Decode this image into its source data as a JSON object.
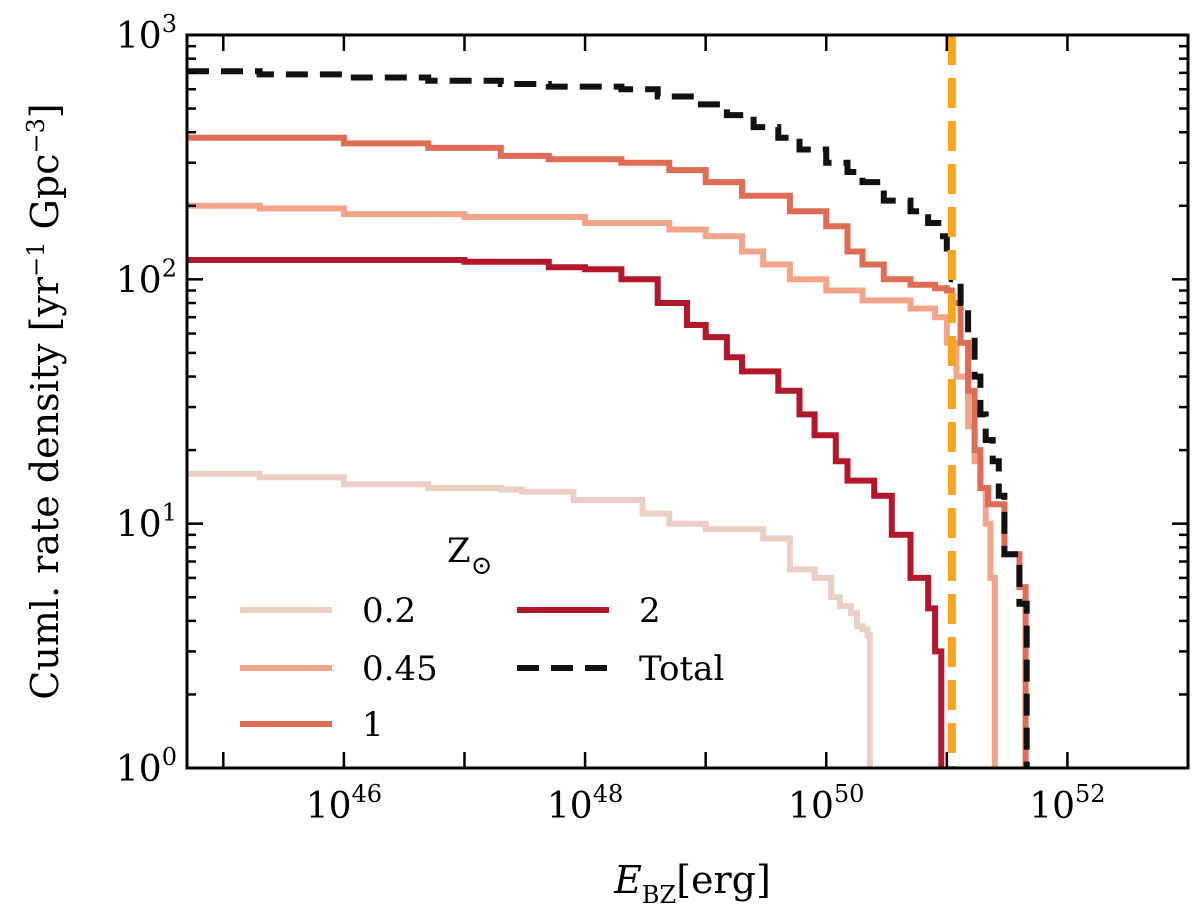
{
  "chart_data": {
    "type": "line",
    "xlabel": {
      "main": "E",
      "sub": "BZ",
      "unit": "[erg]"
    },
    "ylabel": {
      "prefix": "Cuml. rate density [yr",
      "exp1": "−1",
      "mid": " Gpc",
      "exp2": "−3",
      "suffix": "]"
    },
    "xscale": "log",
    "yscale": "log",
    "xlim": [
      5e+44,
      1e+53
    ],
    "ylim": [
      1,
      1000
    ],
    "x_ticks": [
      {
        "value": 1e+46,
        "base": "10",
        "exp": "46"
      },
      {
        "value": 1e+48,
        "base": "10",
        "exp": "48"
      },
      {
        "value": 1e+50,
        "base": "10",
        "exp": "50"
      },
      {
        "value": 1e+52,
        "base": "10",
        "exp": "52"
      }
    ],
    "y_ticks": [
      {
        "value": 1,
        "base": "10",
        "exp": "0"
      },
      {
        "value": 10,
        "base": "10",
        "exp": "1"
      },
      {
        "value": 100,
        "base": "10",
        "exp": "2"
      },
      {
        "value": 1000,
        "base": "10",
        "exp": "3"
      }
    ],
    "legend": {
      "title": "Z",
      "title_symbol": "⊙",
      "placement": "lower-left",
      "columns": 2
    },
    "vertical_line": {
      "x": 1.1e+51,
      "color": "#f5a51e",
      "style": "dashed"
    },
    "series": [
      {
        "name": "0.2",
        "color": "#eacfc2",
        "dash": false,
        "points": [
          [
            5e+44,
            16
          ],
          [
            2e+45,
            15.5
          ],
          [
            1e+46,
            14.5
          ],
          [
            5e+46,
            14
          ],
          [
            2e+47,
            13.8
          ],
          [
            3e+47,
            13.5
          ],
          [
            8e+47,
            12.5
          ],
          [
            3e+48,
            11
          ],
          [
            5e+48,
            10
          ],
          [
            1e+49,
            9.5
          ],
          [
            3e+49,
            8.7
          ],
          [
            5e+49,
            6.5
          ],
          [
            8e+49,
            6
          ],
          [
            1.1e+50,
            5
          ],
          [
            1.3e+50,
            4.6
          ],
          [
            1.6e+50,
            4.3
          ],
          [
            1.8e+50,
            3.8
          ],
          [
            2e+50,
            3.7
          ],
          [
            2.2e+50,
            3.5
          ],
          [
            2.3e+50,
            2.5
          ],
          [
            2.3e+50,
            1
          ]
        ]
      },
      {
        "name": "0.45",
        "color": "#f2a588",
        "dash": false,
        "points": [
          [
            5e+44,
            200
          ],
          [
            2e+45,
            195
          ],
          [
            1e+46,
            185
          ],
          [
            1e+47,
            180
          ],
          [
            1e+48,
            170
          ],
          [
            5e+48,
            160
          ],
          [
            1e+49,
            150
          ],
          [
            2e+49,
            130
          ],
          [
            3e+49,
            115
          ],
          [
            5e+49,
            100
          ],
          [
            1e+50,
            90
          ],
          [
            2e+50,
            82
          ],
          [
            5e+50,
            76
          ],
          [
            8e+50,
            70
          ],
          [
            1e+51,
            55
          ],
          [
            1.2e+51,
            40
          ],
          [
            1.5e+51,
            25
          ],
          [
            1.7e+51,
            18
          ],
          [
            1.9e+51,
            14
          ],
          [
            2.1e+51,
            10
          ],
          [
            2.3e+51,
            6
          ],
          [
            2.5e+51,
            5
          ],
          [
            2.5e+51,
            1
          ]
        ]
      },
      {
        "name": "1",
        "color": "#df6d56",
        "dash": false,
        "points": [
          [
            5e+44,
            380
          ],
          [
            1e+46,
            360
          ],
          [
            5e+46,
            345
          ],
          [
            2e+47,
            320
          ],
          [
            5e+47,
            310
          ],
          [
            2e+48,
            300
          ],
          [
            5e+48,
            280
          ],
          [
            1e+49,
            250
          ],
          [
            2e+49,
            220
          ],
          [
            5e+49,
            190
          ],
          [
            1e+50,
            165
          ],
          [
            1.5e+50,
            130
          ],
          [
            2e+50,
            115
          ],
          [
            3e+50,
            100
          ],
          [
            5e+50,
            95
          ],
          [
            8e+50,
            92
          ],
          [
            1e+51,
            90
          ],
          [
            1.1e+51,
            80
          ],
          [
            1.3e+51,
            55
          ],
          [
            1.5e+51,
            35
          ],
          [
            1.7e+51,
            20
          ],
          [
            1.9e+51,
            14
          ],
          [
            2.2e+51,
            12
          ],
          [
            3e+51,
            7.5
          ],
          [
            4e+51,
            5.5
          ],
          [
            4.5e+51,
            4
          ],
          [
            4.5e+51,
            1
          ]
        ]
      },
      {
        "name": "2",
        "color": "#b3172b",
        "dash": false,
        "points": [
          [
            5e+44,
            120
          ],
          [
            1e+46,
            120
          ],
          [
            1e+47,
            118
          ],
          [
            5e+47,
            112
          ],
          [
            1e+48,
            110
          ],
          [
            2e+48,
            100
          ],
          [
            4e+48,
            80
          ],
          [
            7e+48,
            65
          ],
          [
            1e+49,
            58
          ],
          [
            1.5e+49,
            48
          ],
          [
            2e+49,
            42
          ],
          [
            4e+49,
            35
          ],
          [
            6e+49,
            28
          ],
          [
            8e+49,
            23
          ],
          [
            1.2e+50,
            18
          ],
          [
            1.5e+50,
            15
          ],
          [
            2.5e+50,
            13
          ],
          [
            3.5e+50,
            9
          ],
          [
            5e+50,
            6
          ],
          [
            7e+50,
            4.5
          ],
          [
            8e+50,
            3
          ],
          [
            9e+50,
            2.5
          ],
          [
            9e+50,
            1
          ]
        ]
      },
      {
        "name": "Total",
        "color": "#111111",
        "dash": true,
        "points": [
          [
            5e+44,
            710
          ],
          [
            2e+45,
            690
          ],
          [
            1e+46,
            670
          ],
          [
            5e+46,
            650
          ],
          [
            2e+47,
            630
          ],
          [
            5e+47,
            615
          ],
          [
            2e+48,
            600
          ],
          [
            4e+48,
            560
          ],
          [
            8e+48,
            520
          ],
          [
            1.5e+49,
            470
          ],
          [
            2.5e+49,
            420
          ],
          [
            4e+49,
            380
          ],
          [
            6e+49,
            340
          ],
          [
            1e+50,
            300
          ],
          [
            1.5e+50,
            275
          ],
          [
            2e+50,
            250
          ],
          [
            3e+50,
            210
          ],
          [
            5e+50,
            190
          ],
          [
            7e+50,
            170
          ],
          [
            8.5e+50,
            150
          ],
          [
            1e+51,
            120
          ],
          [
            1.1e+51,
            100
          ],
          [
            1.3e+51,
            80
          ],
          [
            1.5e+51,
            60
          ],
          [
            1.7e+51,
            40
          ],
          [
            1.9e+51,
            28
          ],
          [
            2.1e+51,
            22
          ],
          [
            2.4e+51,
            18
          ],
          [
            2.7e+51,
            13
          ],
          [
            3e+51,
            7.5
          ],
          [
            3.7e+51,
            7.5
          ],
          [
            4e+51,
            4.7
          ],
          [
            4.6e+51,
            4.5
          ],
          [
            4.6e+51,
            1
          ]
        ]
      }
    ]
  }
}
